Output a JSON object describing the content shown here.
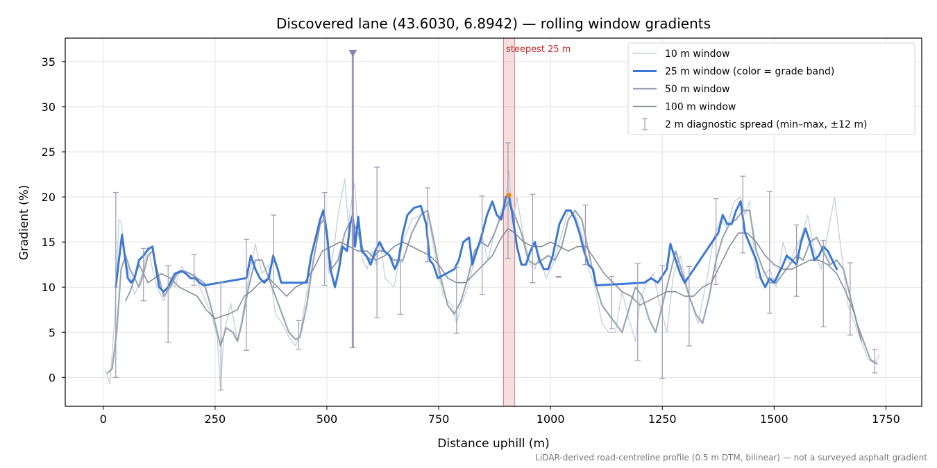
{
  "chart_data": {
    "type": "line",
    "title": "Discovered lane (43.6030, 6.8942) — rolling window gradients",
    "xlabel": "Distance uphill (m)",
    "ylabel": "Gradient (%)",
    "xlim": [
      -85,
      1830
    ],
    "ylim": [
      -3.2,
      37.6
    ],
    "xticks": [
      0,
      250,
      500,
      750,
      1000,
      1250,
      1500,
      1750
    ],
    "yticks": [
      0,
      5,
      10,
      15,
      20,
      25,
      30,
      35
    ],
    "grid": true,
    "legend_position": "top-right",
    "footnote": "LiDAR-derived road-centreline profile (0.5 m DTM, bilinear) — not a surveyed asphalt gradient",
    "highlight": {
      "label": "steepest 25 m",
      "x_range": [
        895,
        920
      ],
      "color": "#e8a0a0"
    },
    "peak_marker": {
      "x": 907,
      "y": 20.2,
      "color": "#f0890a"
    },
    "series": [
      {
        "name": "10 m window",
        "color": "#c6ced8",
        "width": 1.3,
        "x": [
          5,
          15,
          25,
          35,
          40,
          50,
          60,
          70,
          80,
          90,
          100,
          110,
          120,
          135,
          150,
          160,
          175,
          190,
          205,
          220,
          240,
          255,
          262,
          270,
          285,
          300,
          310,
          325,
          340,
          355,
          370,
          385,
          400,
          415,
          430,
          440,
          455,
          470,
          485,
          495,
          505,
          515,
          525,
          540,
          548,
          555,
          562,
          570,
          580,
          590,
          600,
          610,
          620,
          630,
          650,
          670,
          690,
          710,
          725,
          740,
          760,
          780,
          790,
          800,
          815,
          830,
          845,
          860,
          875,
          890,
          900,
          907,
          915,
          925,
          940,
          955,
          965,
          975,
          990,
          1005,
          1020,
          1040,
          1055,
          1070,
          1085,
          1100,
          1115,
          1130,
          1145,
          1160,
          1175,
          1190,
          1200,
          1215,
          1230,
          1245,
          1260,
          1275,
          1290,
          1310,
          1330,
          1350,
          1365,
          1380,
          1395,
          1410,
          1425,
          1435,
          1445,
          1460,
          1475,
          1490,
          1505,
          1520,
          1535,
          1545,
          1560,
          1575,
          1590,
          1605,
          1620,
          1635,
          1650,
          1665,
          1680,
          1695,
          1710,
          1725,
          1735
        ],
        "y": [
          0.8,
          -0.7,
          6,
          17.5,
          17.2,
          13,
          11.3,
          9.2,
          10.3,
          12.2,
          14.5,
          12,
          10,
          8.5,
          10.5,
          10,
          12.3,
          11.2,
          11.5,
          9.5,
          7.2,
          4.5,
          -1.3,
          5,
          8.2,
          4,
          6.5,
          11,
          14.8,
          11.5,
          12.5,
          7,
          6,
          4.5,
          3.5,
          4.8,
          9.5,
          13,
          17,
          18,
          11.5,
          14,
          18,
          22,
          17,
          19.5,
          21.5,
          16,
          13,
          12,
          14,
          12.5,
          15,
          11,
          10,
          15,
          17.5,
          18,
          18.5,
          14,
          9,
          8,
          6,
          8,
          10,
          13,
          16,
          13,
          16,
          18.5,
          19.5,
          23,
          17,
          20,
          15.5,
          12.5,
          12,
          13.5,
          11,
          12.5,
          15,
          18.5,
          18,
          16,
          12,
          10,
          6,
          5,
          5,
          9.5,
          6.5,
          4,
          8.5,
          10.5,
          11.5,
          8,
          5,
          11.5,
          13.5,
          9,
          6,
          11,
          15.5,
          17.5,
          16.5,
          19.5,
          20,
          18,
          19.5,
          11,
          11.2,
          12,
          10,
          15,
          12.5,
          14,
          15.5,
          18,
          14,
          12,
          16,
          20,
          14,
          8,
          6,
          4,
          2,
          1.5,
          2.5
        ]
      },
      {
        "name": "25 m window (color = grade band)",
        "color": "#3a78d4",
        "width": 3,
        "x": [
          28,
          35,
          42,
          48,
          55,
          62,
          70,
          80,
          90,
          100,
          110,
          118,
          125,
          135,
          145,
          160,
          175,
          185,
          195,
          205,
          215,
          225,
          320,
          330,
          340,
          350,
          360,
          370,
          380,
          390,
          398,
          455,
          465,
          475,
          485,
          492,
          500,
          508,
          518,
          527,
          535,
          545,
          552,
          558,
          563,
          570,
          578,
          588,
          598,
          608,
          618,
          628,
          640,
          652,
          660,
          670,
          680,
          695,
          710,
          722,
          730,
          738,
          748,
          785,
          795,
          805,
          818,
          825,
          835,
          845,
          858,
          870,
          880,
          890,
          900,
          907,
          915,
          925,
          935,
          945,
          955,
          965,
          975,
          985,
          995,
          1005,
          1020,
          1035,
          1045,
          1055,
          1065,
          1075,
          1085,
          1095,
          1102,
          1210,
          1225,
          1240,
          1260,
          1268,
          1280,
          1290,
          1300,
          1375,
          1385,
          1395,
          1405,
          1415,
          1425,
          1435,
          1460,
          1470,
          1480,
          1490,
          1500,
          1510,
          1520,
          1528,
          1540,
          1550,
          1560,
          1570,
          1580,
          1590,
          1600,
          1610,
          1620,
          1630,
          1640
        ],
        "y": [
          10,
          13,
          15.8,
          13.5,
          11,
          10.5,
          11,
          13,
          13.5,
          14.2,
          14.5,
          12,
          10,
          9.5,
          10,
          11.5,
          11.8,
          11.5,
          11,
          11,
          10.5,
          10.2,
          11,
          13.5,
          12,
          11,
          10.5,
          11,
          13.5,
          12,
          10.5,
          10.5,
          13.5,
          15.5,
          17.5,
          18.5,
          16,
          12,
          10,
          12,
          14.5,
          14,
          17,
          18,
          14.5,
          17.8,
          14,
          13.5,
          12.5,
          14,
          15,
          14,
          13.5,
          12,
          13,
          16,
          18,
          18.8,
          19,
          17,
          13,
          12.5,
          11,
          12,
          13,
          15,
          15.5,
          12.5,
          14,
          15.5,
          18,
          19.5,
          18,
          17.5,
          20,
          20.2,
          18,
          14.5,
          12.5,
          12.5,
          14,
          15,
          13,
          12,
          12,
          13.5,
          17,
          18.5,
          18.5,
          17.5,
          16,
          14,
          12.5,
          12,
          10.2,
          10.5,
          11,
          10.5,
          12,
          14.8,
          13,
          11.5,
          10.5,
          16,
          18,
          17,
          17,
          18.5,
          19.5,
          16,
          13,
          11,
          10,
          11,
          10.5,
          11.5,
          12.5,
          13.5,
          13,
          12.5,
          15,
          16.5,
          15,
          13,
          13.5,
          14.5,
          14,
          13,
          12
        ]
      },
      {
        "name": "50 m window",
        "color": "#9aa5b1",
        "width": 2.2,
        "x": [
          10,
          20,
          30,
          40,
          50,
          60,
          70,
          80,
          90,
          100,
          110,
          120,
          135,
          150,
          165,
          180,
          195,
          210,
          225,
          240,
          255,
          262,
          275,
          290,
          300,
          310,
          325,
          340,
          355,
          370,
          385,
          400,
          415,
          430,
          440,
          455,
          470,
          485,
          495,
          510,
          525,
          540,
          555,
          570,
          585,
          600,
          615,
          630,
          650,
          670,
          690,
          710,
          725,
          740,
          755,
          770,
          785,
          800,
          815,
          830,
          845,
          860,
          875,
          890,
          905,
          920,
          935,
          950,
          965,
          980,
          995,
          1010,
          1025,
          1040,
          1055,
          1070,
          1085,
          1100,
          1115,
          1130,
          1145,
          1160,
          1175,
          1190,
          1205,
          1220,
          1235,
          1250,
          1265,
          1280,
          1295,
          1310,
          1325,
          1340,
          1355,
          1370,
          1385,
          1400,
          1415,
          1430,
          1445,
          1460,
          1475,
          1490,
          1505,
          1520,
          1535,
          1550,
          1565,
          1580,
          1595,
          1610,
          1625,
          1640,
          1655,
          1670,
          1685,
          1700,
          1715,
          1730
        ],
        "y": [
          0.5,
          1,
          5,
          12,
          13.5,
          12,
          11,
          10,
          11.5,
          13.5,
          14,
          12,
          9,
          10,
          11.5,
          11.8,
          11.5,
          11,
          10.5,
          8,
          5,
          3.5,
          5.5,
          5,
          4,
          6,
          10,
          13,
          13,
          11,
          9,
          7,
          5,
          4.2,
          4.5,
          8,
          13,
          17,
          17.5,
          12,
          13,
          16,
          17.5,
          16,
          13.5,
          13,
          14,
          14,
          13,
          13,
          16,
          18,
          18.5,
          15,
          11,
          8,
          7,
          8.5,
          11,
          14,
          15,
          14.5,
          16,
          18,
          19.5,
          18,
          16,
          13,
          12.5,
          13,
          13.5,
          13,
          14.5,
          17.5,
          18.5,
          17.5,
          14,
          10.5,
          8,
          7,
          6,
          5,
          7.5,
          10,
          9,
          6.5,
          5,
          8,
          11,
          14,
          11.5,
          9,
          7,
          6,
          9,
          13,
          15.5,
          17,
          17.5,
          18.5,
          18.5,
          14,
          12,
          10.5,
          10.5,
          11.5,
          12.5,
          13.5,
          13,
          15,
          15.5,
          14,
          12.5,
          13,
          12,
          9,
          6,
          4,
          2,
          1.5
        ]
      },
      {
        "name": "100 m window",
        "color": "#858c96",
        "width": 1.6,
        "x": [
          50,
          60,
          70,
          80,
          90,
          100,
          115,
          130,
          150,
          170,
          190,
          210,
          230,
          250,
          265,
          280,
          300,
          315,
          330,
          350,
          370,
          390,
          410,
          430,
          450,
          470,
          490,
          510,
          530,
          550,
          570,
          590,
          610,
          630,
          650,
          670,
          690,
          710,
          730,
          750,
          770,
          790,
          810,
          830,
          850,
          870,
          890,
          905,
          920,
          940,
          960,
          980,
          1000,
          1020,
          1040,
          1060,
          1080,
          1100,
          1120,
          1140,
          1160,
          1180,
          1200,
          1220,
          1240,
          1260,
          1280,
          1300,
          1320,
          1340,
          1360,
          1380,
          1400,
          1420,
          1440,
          1460,
          1480,
          1500,
          1520,
          1540,
          1560,
          1580,
          1600,
          1620,
          1640,
          1660,
          1680,
          1695
        ],
        "y": [
          8.5,
          9.5,
          11,
          12.5,
          11.5,
          10.5,
          11,
          11.5,
          11,
          10,
          9.5,
          9,
          7.5,
          6.5,
          6.8,
          7,
          7.5,
          9,
          9.5,
          10.5,
          11,
          10,
          9,
          10,
          10.5,
          12,
          14,
          14.5,
          15,
          14.5,
          14,
          14,
          13,
          13.5,
          14.5,
          15,
          14.5,
          14,
          13.5,
          12.5,
          11,
          10.5,
          10.5,
          11.5,
          12.5,
          13.5,
          15.5,
          16.5,
          16,
          15,
          14.5,
          14.5,
          15,
          14.5,
          14,
          14.5,
          14.5,
          13,
          11.5,
          10.5,
          9.5,
          9,
          8,
          8.5,
          9,
          9.5,
          9.5,
          9,
          9,
          10,
          10.5,
          12.5,
          14.5,
          16,
          16,
          15,
          13.5,
          12.5,
          12,
          12,
          12.5,
          13,
          13,
          12.5,
          11.5,
          9.5,
          7,
          4
        ]
      }
    ],
    "diagnostic_spread": {
      "name": "2 m diagnostic spread (min–max, ±12 m)",
      "color": "#9c98b8",
      "x": [
        28,
        90,
        145,
        203,
        263,
        320,
        381,
        437,
        495,
        558,
        612,
        665,
        725,
        790,
        847,
        905,
        960,
        1018,
        1078,
        1137,
        1195,
        1250,
        1310,
        1370,
        1430,
        1490,
        1550,
        1610,
        1670,
        1725
      ],
      "ymin": [
        0,
        8.5,
        3.9,
        10.2,
        -1.4,
        3,
        10,
        3.1,
        10.2,
        3.3,
        6.6,
        7,
        12.8,
        4.9,
        9.2,
        13.2,
        10.5,
        11.1,
        12.5,
        5.4,
        1.9,
        -0.1,
        3.5,
        10.3,
        13.8,
        7.1,
        9,
        5.6,
        4.7,
        0.5
      ],
      "ymax": [
        20.5,
        14.3,
        12.4,
        13.6,
        10.5,
        15.3,
        18,
        6.3,
        20.5,
        36,
        23.3,
        12.8,
        21,
        12.2,
        20.1,
        26,
        20.3,
        11.2,
        19.1,
        11.2,
        12.6,
        12.4,
        12.3,
        19.8,
        22.3,
        20.6,
        16.9,
        15.2,
        12.7,
        3.1
      ]
    }
  }
}
